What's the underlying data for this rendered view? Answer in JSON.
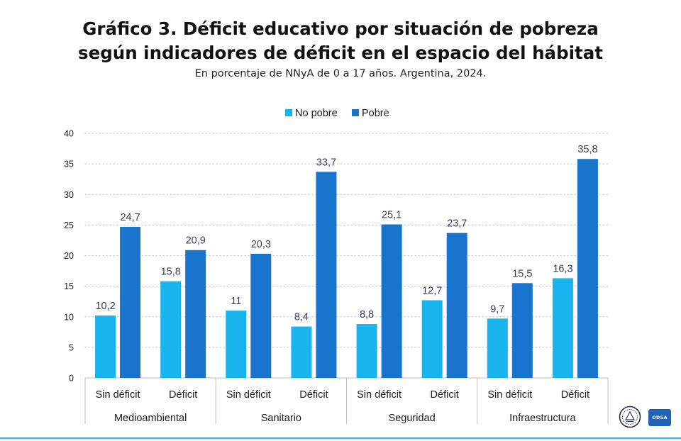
{
  "header": {
    "title_line1": "Gráfico 3. Déficit educativo por situación de pobreza",
    "title_line2": "según indicadores de déficit en el espacio del hábitat",
    "subtitle": "En porcentaje de NNyA de 0 a 17 años. Argentina, 2024."
  },
  "logos": {
    "odsa_text": "ODSA"
  },
  "chart_data": {
    "type": "bar",
    "title": "Gráfico 3. Déficit educativo por situación de pobreza según indicadores de déficit en el espacio del hábitat",
    "subtitle": "En porcentaje de NNyA de 0 a 17 años. Argentina, 2024.",
    "groups": [
      {
        "label": "Medioambiental",
        "categories": [
          "Sin déficit",
          "Déficit"
        ]
      },
      {
        "label": "Sanitario",
        "categories": [
          "Sin déficit",
          "Déficit"
        ]
      },
      {
        "label": "Seguridad",
        "categories": [
          "Sin déficit",
          "Déficit"
        ]
      },
      {
        "label": "Infraestructura",
        "categories": [
          "Sin déficit",
          "Déficit"
        ]
      }
    ],
    "categories": [
      "Sin déficit",
      "Déficit",
      "Sin déficit",
      "Déficit",
      "Sin déficit",
      "Déficit",
      "Sin déficit",
      "Déficit"
    ],
    "series": [
      {
        "name": "No pobre",
        "color": "#18b4ee",
        "values": [
          10.2,
          15.8,
          11,
          8.4,
          8.8,
          12.7,
          9.7,
          16.3
        ],
        "labels": [
          "10,2",
          "15,8",
          "11",
          "8,4",
          "8,8",
          "12,7",
          "9,7",
          "16,3"
        ]
      },
      {
        "name": "Pobre",
        "color": "#1874cd",
        "values": [
          24.7,
          20.9,
          20.3,
          33.7,
          25.1,
          23.7,
          15.5,
          35.8
        ],
        "labels": [
          "24,7",
          "20,9",
          "20,3",
          "33,7",
          "25,1",
          "23,7",
          "15,5",
          "35,8"
        ]
      }
    ],
    "ylim": [
      0,
      40
    ],
    "yticks": [
      "0",
      "5",
      "10",
      "15",
      "20",
      "25",
      "30",
      "35",
      "40"
    ],
    "grid": true,
    "legend_position": "top-center"
  }
}
